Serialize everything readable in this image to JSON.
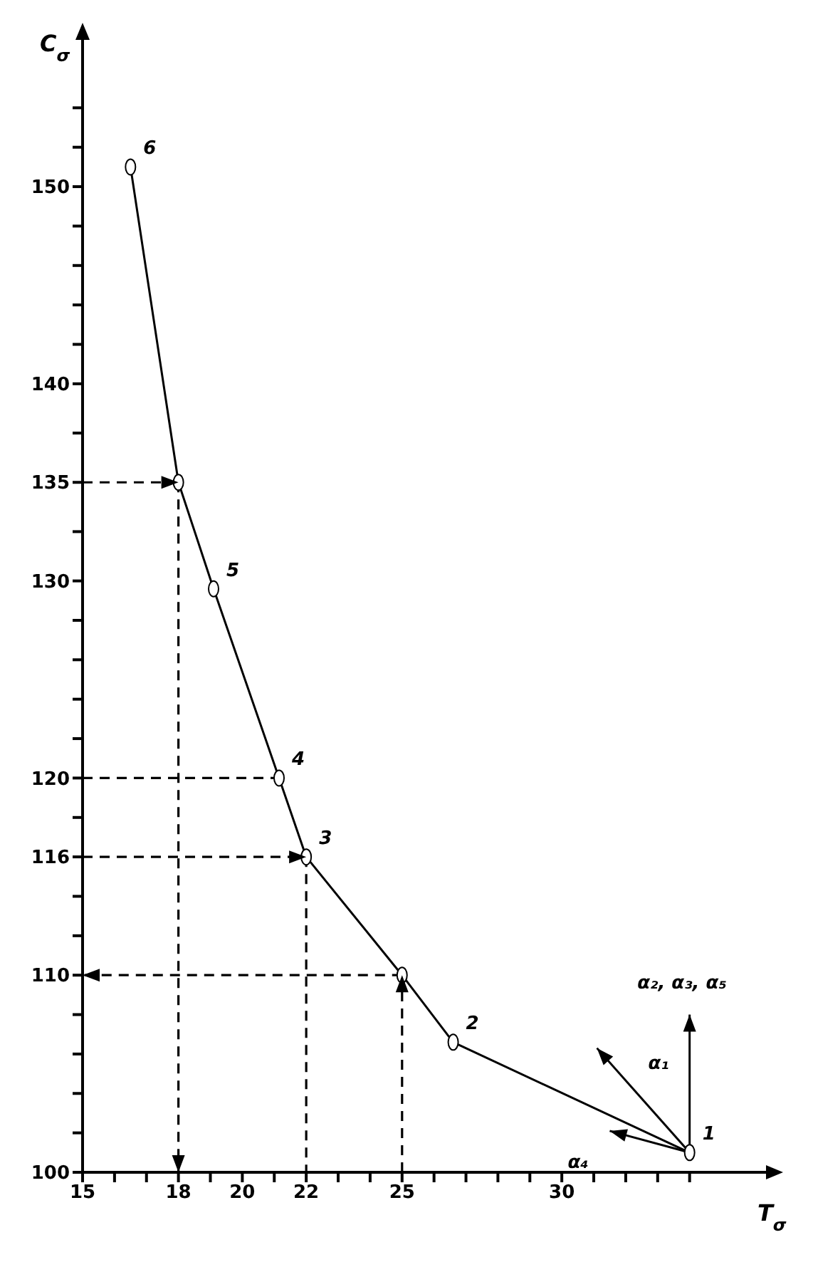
{
  "chart_data": {
    "type": "line",
    "xlabel": "T$_{σ}$",
    "ylabel": "C$_{σ}$",
    "xlim": [
      15,
      35.5
    ],
    "ylim": [
      100,
      156
    ],
    "xticks": [
      15,
      {
        "value": 16,
        "label": null
      },
      {
        "value": 17,
        "label": null
      },
      18,
      {
        "value": 19,
        "label": null
      },
      20,
      {
        "value": 21,
        "label": null
      },
      22,
      {
        "value": 23,
        "label": null
      },
      {
        "value": 24,
        "label": null
      },
      25,
      {
        "value": 26,
        "label": null
      },
      {
        "value": 27,
        "label": null
      },
      {
        "value": 28,
        "label": null
      },
      {
        "value": 29,
        "label": null
      },
      30,
      {
        "value": 31,
        "label": null
      },
      {
        "value": 32,
        "label": null
      },
      {
        "value": 33,
        "label": null
      },
      {
        "value": 34,
        "label": null
      }
    ],
    "yticks": [
      100,
      {
        "value": 102,
        "label": null
      },
      {
        "value": 104,
        "label": null
      },
      {
        "value": 106,
        "label": null
      },
      {
        "value": 108,
        "label": null
      },
      110,
      {
        "value": 112,
        "label": null
      },
      {
        "value": 114,
        "label": null
      },
      116,
      {
        "value": 118,
        "label": null
      },
      120,
      {
        "value": 122,
        "label": null
      },
      {
        "value": 124,
        "label": null
      },
      {
        "value": 126,
        "label": null
      },
      {
        "value": 128,
        "label": null
      },
      130,
      {
        "value": 132.5,
        "label": null
      },
      135,
      {
        "value": 137.5,
        "label": null
      },
      140,
      {
        "value": 142,
        "label": null
      },
      {
        "value": 144,
        "label": null
      },
      {
        "value": 146,
        "label": null
      },
      {
        "value": 148,
        "label": null
      },
      150,
      {
        "value": 152,
        "label": null
      },
      {
        "value": 154,
        "label": null
      }
    ],
    "series": [
      {
        "type": "line",
        "color": "#000000",
        "marker": "circle",
        "x": [
          34,
          26.6,
          25,
          22,
          21.15,
          19.1,
          18,
          16.5
        ],
        "values": [
          101,
          106.6,
          110,
          116,
          120,
          129.6,
          135,
          151
        ]
      },
      {
        "type": "line",
        "color": "#000000",
        "line_style": "dashed",
        "x": [
          15,
          18
        ],
        "values": [
          135,
          135
        ]
      },
      {
        "type": "line",
        "color": "#000000",
        "line_style": "dashed",
        "x": [
          18,
          18
        ],
        "values": [
          135,
          100
        ]
      },
      {
        "type": "line",
        "color": "#000000",
        "line_style": "dashed",
        "x": [
          15,
          21.15
        ],
        "values": [
          120,
          120
        ]
      },
      {
        "type": "line",
        "color": "#000000",
        "line_style": "dashed",
        "x": [
          15,
          22
        ],
        "values": [
          116,
          116
        ]
      },
      {
        "type": "line",
        "color": "#000000",
        "line_style": "dashed",
        "x": [
          22,
          22
        ],
        "values": [
          116,
          100
        ]
      },
      {
        "type": "line",
        "color": "#000000",
        "line_style": "dashed",
        "x": [
          25,
          25
        ],
        "values": [
          100,
          110
        ]
      },
      {
        "type": "line",
        "color": "#000000",
        "line_style": "dashed",
        "x": [
          25,
          15
        ],
        "values": [
          110,
          110
        ]
      },
      {
        "type": "line",
        "color": "#000000",
        "x": [
          34,
          31.1
        ],
        "values": [
          101,
          106.3
        ]
      },
      {
        "type": "line",
        "color": "#000000",
        "x": [
          34,
          34
        ],
        "values": [
          101,
          108
        ]
      },
      {
        "type": "line",
        "color": "#000000",
        "x": [
          34,
          31.5
        ],
        "values": [
          101,
          102.1
        ]
      }
    ],
    "annotations": [
      {
        "text": "6",
        "x": 16.5,
        "y": 151
      },
      {
        "text": "5",
        "x": 19.1,
        "y": 129.6
      },
      {
        "text": "4",
        "x": 21.15,
        "y": 120
      },
      {
        "text": "3",
        "x": 22,
        "y": 116
      },
      {
        "text": "2",
        "x": 26.6,
        "y": 106.6
      },
      {
        "text": "1",
        "x": 34,
        "y": 101
      },
      "α₂,  α₃,  α₅",
      {
        "text": "α₁",
        "x": 32.3,
        "y": 104.6
      },
      "α₄"
    ]
  }
}
